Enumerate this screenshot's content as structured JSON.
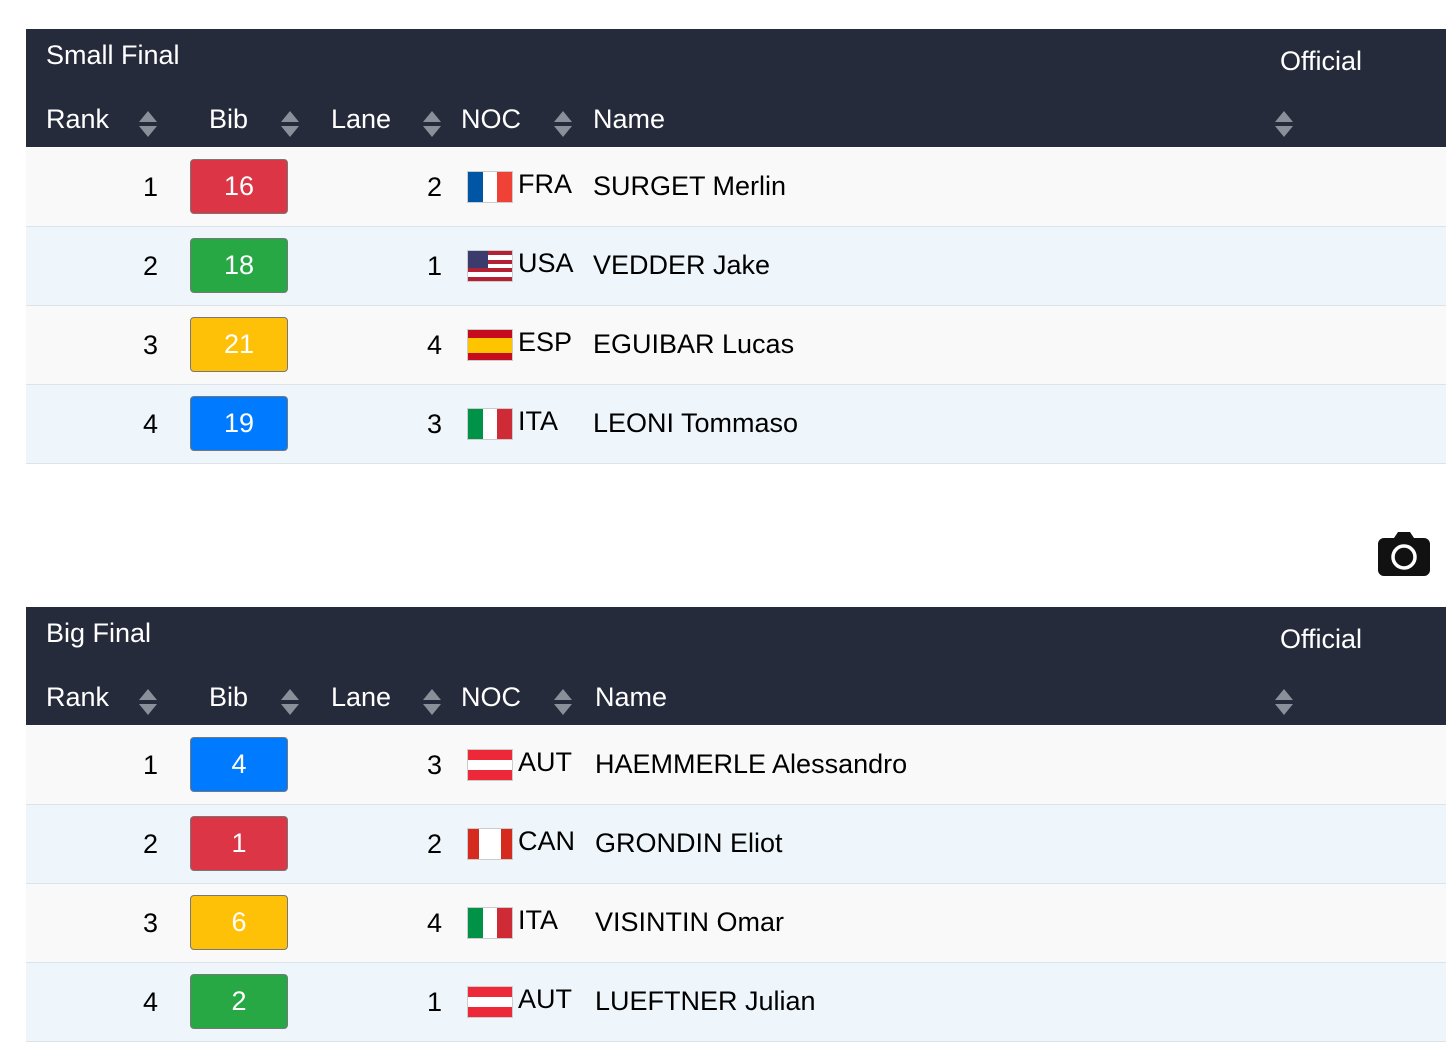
{
  "tables": [
    {
      "title": "Small Final",
      "status": "Official",
      "columns": [
        "Rank",
        "Bib",
        "Lane",
        "NOC",
        "Name"
      ],
      "rows": [
        {
          "rank": 1,
          "bib": 16,
          "bib_color": "#dc3545",
          "lane": 2,
          "noc": "FRA",
          "flag_dir": "v",
          "flag": [
            "#0055a4",
            "#ffffff",
            "#ef4135"
          ],
          "name": "SURGET Merlin"
        },
        {
          "rank": 2,
          "bib": 18,
          "bib_color": "#28a745",
          "lane": 1,
          "noc": "USA",
          "flag_dir": "h",
          "flag": [
            "#b22234",
            "#ffffff",
            "#b22234",
            "#ffffff",
            "#b22234",
            "#ffffff",
            "#b22234"
          ],
          "canton": "#3c3b6e",
          "name": "VEDDER Jake"
        },
        {
          "rank": 3,
          "bib": 21,
          "bib_color": "#ffc107",
          "lane": 4,
          "noc": "ESP",
          "flag_dir": "h",
          "flag": [
            "#c60b1e",
            "#ffc400",
            "#ffc400",
            "#c60b1e"
          ],
          "name": "EGUIBAR Lucas"
        },
        {
          "rank": 4,
          "bib": 19,
          "bib_color": "#007bff",
          "lane": 3,
          "noc": "ITA",
          "flag_dir": "v",
          "flag": [
            "#009246",
            "#ffffff",
            "#ce2b37"
          ],
          "name": "LEONI Tommaso"
        }
      ]
    },
    {
      "title": "Big Final",
      "status": "Official",
      "columns": [
        "Rank",
        "Bib",
        "Lane",
        "NOC",
        "Name"
      ],
      "rows": [
        {
          "rank": 1,
          "bib": 4,
          "bib_color": "#007bff",
          "lane": 3,
          "noc": "AUT",
          "flag_dir": "h",
          "flag": [
            "#ed2939",
            "#ffffff",
            "#ed2939"
          ],
          "name": "HAEMMERLE Alessandro"
        },
        {
          "rank": 2,
          "bib": 1,
          "bib_color": "#dc3545",
          "lane": 2,
          "noc": "CAN",
          "flag_dir": "v",
          "flag": [
            "#d52b1e",
            "#ffffff",
            "#ffffff",
            "#d52b1e"
          ],
          "name": "GRONDIN Eliot"
        },
        {
          "rank": 3,
          "bib": 6,
          "bib_color": "#ffc107",
          "lane": 4,
          "noc": "ITA",
          "flag_dir": "v",
          "flag": [
            "#009246",
            "#ffffff",
            "#ce2b37"
          ],
          "name": "VISINTIN Omar"
        },
        {
          "rank": 4,
          "bib": 2,
          "bib_color": "#28a745",
          "lane": 1,
          "noc": "AUT",
          "flag_dir": "h",
          "flag": [
            "#ed2939",
            "#ffffff",
            "#ed2939"
          ],
          "name": "LUEFTNER Julian"
        }
      ]
    }
  ]
}
